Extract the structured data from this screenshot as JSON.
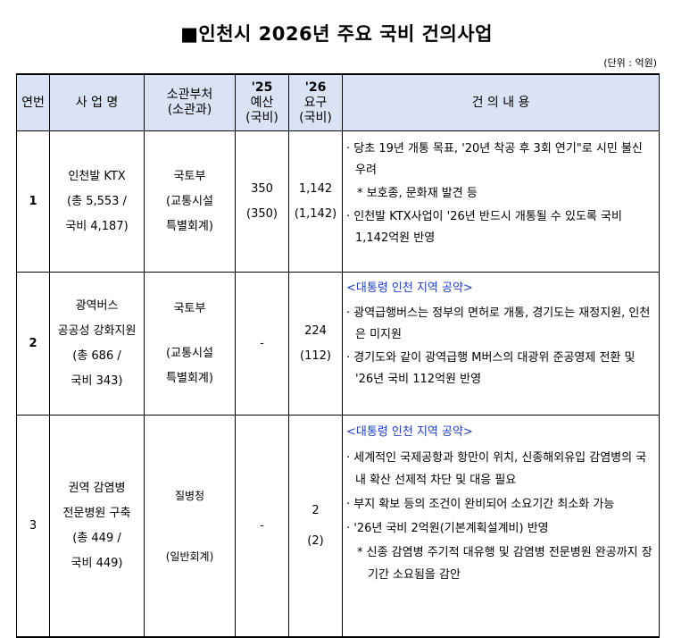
{
  "title": "■인천시 2026년 주요 국비 건의사업",
  "unit": "(단위 : 억원)",
  "headers": {
    "no": "연번",
    "project": "사 업 명",
    "ministry": [
      "소관부처",
      "(소관과)"
    ],
    "budget25": [
      "'25",
      "예산",
      "(국비)"
    ],
    "request26": [
      "'26",
      "요구",
      "(국비)"
    ],
    "content": "건 의 내 용"
  },
  "rows": [
    {
      "no": "1",
      "project": [
        "인천발 KTX",
        "(총 5,553 /",
        "국비 4,187)"
      ],
      "ministry": [
        "국토부",
        "(교통시설",
        "특별회계)"
      ],
      "budget25": [
        "350",
        "(350)"
      ],
      "request26": [
        "1,142",
        "(1,142)"
      ],
      "content": {
        "items": [
          "당초 19년 개통 목표, '20년 착공 후 3회 연기\"로 시민 불신 우려",
          "인천발 KTX사업이 '26년 반드시 개통될 수 있도록 국비1,142억원 반영"
        ],
        "note": "* 보호종, 문화재 발견 등"
      }
    },
    {
      "no": "2",
      "project": [
        "광역버스",
        "공공성 강화지원",
        "(총 686 /",
        "국비 343)"
      ],
      "ministry": [
        "국토부",
        "(교통시설",
        "특별회계)"
      ],
      "budget25": "-",
      "request26": [
        "224",
        "(112)"
      ],
      "content": {
        "pledge": "<대통령 인천 지역 공약>",
        "items": [
          "광역급행버스는 정부의 면허로 개통, 경기도는 재정지원, 인천은 미지원",
          "경기도와 같이 광역급행 M버스의 대광위 준공영제 전환 및 '26년 국비 112억원 반영"
        ]
      }
    },
    {
      "no": "3",
      "project": [
        "권역 감염병",
        "전문병원 구축",
        "(총 449 /",
        "국비 449)"
      ],
      "ministry": [
        "질병청",
        "(일반회계)"
      ],
      "budget25": "-",
      "request26": [
        "2",
        "(2)"
      ],
      "content": {
        "pledge": "<대통령 인천 지역 공약>",
        "items": [
          "세계적인 국제공항과 항만이 위치, 신종해외유입 감염병의 국내 확산 선제적 차단 및 대응 필요",
          "부지 확보 등의 조건이 완비되어 소요기간 최소화 가능",
          "'26년 국비 2억원(기본계획설계비) 반영"
        ],
        "note": "* 신종 감염병 주기적 대유행 및 감염병 전문병원 완공까지 장기간 소요됨을 감안"
      }
    }
  ],
  "colors": {
    "header_bg": "#dae3f3",
    "pledge_text": "#1f3fbf"
  }
}
